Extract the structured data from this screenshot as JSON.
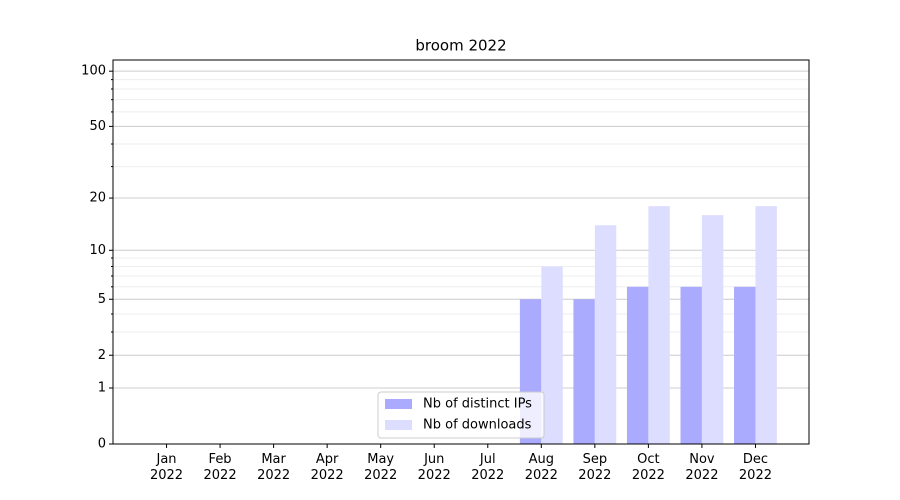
{
  "chart_data": {
    "type": "bar",
    "title": "broom 2022",
    "categories": [
      "Jan\n2022",
      "Feb\n2022",
      "Mar\n2022",
      "Apr\n2022",
      "May\n2022",
      "Jun\n2022",
      "Jul\n2022",
      "Aug\n2022",
      "Sep\n2022",
      "Oct\n2022",
      "Nov\n2022",
      "Dec\n2022"
    ],
    "series": [
      {
        "name": "Nb of distinct IPs",
        "color": "#aaaaff",
        "values": [
          0,
          0,
          0,
          0,
          0,
          0,
          0,
          5,
          5,
          6,
          6,
          6
        ]
      },
      {
        "name": "Nb of downloads",
        "color": "#ddddff",
        "values": [
          0,
          0,
          0,
          0,
          0,
          0,
          0,
          8,
          14,
          18,
          16,
          18
        ]
      }
    ],
    "y_scale": "log1p",
    "ylim": [
      0,
      115
    ],
    "yticks": [
      0,
      1,
      2,
      5,
      10,
      20,
      50,
      100
    ],
    "minor_yticks": [
      3,
      4,
      6,
      7,
      8,
      9,
      30,
      40,
      60,
      70,
      80,
      90
    ],
    "grid": true,
    "legend": "lower center"
  }
}
